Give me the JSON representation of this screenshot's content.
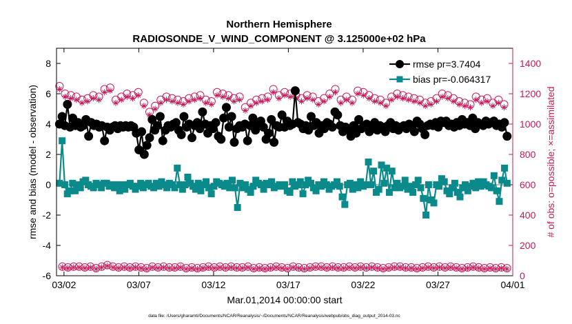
{
  "chart_data": {
    "type": "line",
    "title": "Northern Hemisphere",
    "subtitle": "RADIOSONDE_V_WIND_COMPONENT @ 3.125000e+02 hPa",
    "xlabel": "Mar.01,2014 00:00:00 start",
    "ylabel": "rmse and bias (model - observation)",
    "ylabel_right": "# of obs: o=possible; ×=assimilated",
    "ylim": [
      -6,
      9
    ],
    "ylim_right": [
      0,
      1500
    ],
    "xlim_days": [
      0.5,
      31.0
    ],
    "x_ticks": [
      "03/02",
      "03/07",
      "03/12",
      "03/17",
      "03/22",
      "03/27",
      "04/01"
    ],
    "y_ticks": [
      "-6",
      "-4",
      "-2",
      "0",
      "2",
      "4",
      "6",
      "8"
    ],
    "y_ticks_right": [
      "0",
      "200",
      "400",
      "600",
      "800",
      "1000",
      "1200",
      "1400"
    ],
    "footnote": "data file: /Users/gharamti/Documents/NCAR/Reanalysis/~/Documents/NCAR/Reanalysis/webpub/obs_diag_output_2014-03.nc",
    "series": [
      {
        "name": "rmse pr=3.7404",
        "color": "#000000",
        "marker": "circle",
        "values": [
          4.0,
          4.5,
          3.9,
          5.3,
          3.8,
          4.4,
          3.9,
          4.1,
          3.8,
          3.9,
          4.3,
          3.2,
          4.1,
          3.9,
          4.0,
          3.8,
          3.9,
          2.9,
          3.8,
          3.6,
          3.8,
          3.9,
          3.7,
          3.9,
          3.8,
          3.9,
          3.8,
          3.9,
          3.8,
          3.4,
          2.3,
          3.5,
          2.0,
          2.6,
          3.1,
          4.3,
          3.6,
          3.9,
          4.5,
          2.9,
          3.6,
          3.9,
          3.8,
          4.0,
          4.1,
          3.6,
          3.3,
          4.5,
          3.8,
          4.0,
          3.1,
          3.9,
          4.1,
          3.7,
          4.8,
          4.0,
          3.4,
          3.9,
          3.7,
          4.1,
          3.2,
          3.0,
          4.4,
          5.1,
          3.8,
          4.5,
          2.8,
          3.7,
          3.9,
          3.8,
          4.0,
          2.9,
          3.9,
          4.4,
          3.6,
          4.0,
          4.2,
          3.8,
          3.0,
          3.4,
          4.3,
          2.8,
          3.9,
          3.8,
          4.6,
          3.8,
          4.2,
          3.9,
          4.0,
          6.2,
          4.1,
          4.0,
          3.7,
          3.9,
          3.6,
          4.5,
          3.9,
          4.1,
          3.4,
          3.9,
          3.7,
          4.1,
          4.0,
          3.8,
          4.8,
          4.6,
          3.9,
          3.5,
          3.8,
          3.6,
          3.2,
          3.9,
          3.4,
          4.3,
          3.7,
          3.9,
          4.0,
          3.5,
          3.9,
          4.1,
          3.6,
          3.9,
          3.8,
          3.5,
          3.9,
          4.1,
          3.7,
          3.9,
          3.6,
          3.8,
          3.9,
          3.7,
          4.0,
          3.8,
          3.5,
          4.2,
          4.0,
          3.7,
          3.3,
          3.9,
          4.0,
          3.9,
          4.1,
          3.8,
          4.2,
          4.1,
          4.2,
          3.9,
          4.0,
          3.8,
          4.1,
          3.9,
          4.3,
          4.0,
          4.1,
          3.9,
          4.4,
          3.7,
          4.1,
          4.0,
          3.9,
          4.2,
          4.0,
          4.1,
          4.2,
          3.9,
          4.0,
          3.8,
          4.1,
          3.2
        ]
      },
      {
        "name": "bias pr=-0.064317",
        "color": "#0a8a8a",
        "marker": "square",
        "values": [
          0.1,
          2.9,
          0.0,
          -0.6,
          -0.4,
          0.1,
          -0.4,
          0.0,
          -0.2,
          0.2,
          0.3,
          0.0,
          -0.1,
          -0.2,
          0.1,
          0.0,
          -0.2,
          0.1,
          0.1,
          -0.1,
          0.0,
          -0.2,
          0.0,
          -0.4,
          0.0,
          -0.3,
          0.0,
          0.1,
          -0.1,
          -0.3,
          -0.1,
          0.1,
          -0.2,
          0.0,
          0.1,
          -0.1,
          -0.2,
          0.1,
          -0.1,
          0.2,
          0.0,
          -0.2,
          0.1,
          0.0,
          -0.2,
          1.1,
          0.0,
          -0.3,
          0.0,
          0.5,
          0.1,
          -0.1,
          -0.3,
          0.1,
          -0.4,
          0.0,
          0.2,
          -0.2,
          -0.6,
          -0.1,
          0.2,
          0.1,
          0.0,
          -0.1,
          0.1,
          -0.2,
          0.3,
          -0.2,
          -1.5,
          0.1,
          -0.2,
          0.0,
          -0.3,
          -0.5,
          -0.1,
          0.3,
          0.1,
          0.0,
          -0.3,
          0.1,
          0.0,
          0.2,
          -0.2,
          -0.1,
          0.0,
          -0.1,
          0.0,
          -0.4,
          -0.5,
          0.2,
          -0.1,
          0.0,
          0.2,
          -0.6,
          0.0,
          0.3,
          0.1,
          -0.2,
          -0.4,
          0.0,
          -0.1,
          0.2,
          0.0,
          -0.3,
          -0.1,
          0.0,
          0.2,
          -0.1,
          -0.8,
          -1.3,
          0.0,
          0.1,
          -0.3,
          0.0,
          -0.2,
          0.2,
          -0.1,
          0.0,
          1.5,
          0.0,
          0.9,
          -0.5,
          -0.3,
          1.3,
          0.1,
          1.1,
          -0.5,
          0.9,
          -0.2,
          0.1,
          -0.2,
          -0.1,
          0.3,
          -0.3,
          -0.1,
          -0.5,
          0.0,
          0.3,
          -0.2,
          -0.9,
          -2.0,
          0.0,
          -1.0,
          -1.2,
          0.0,
          -0.1,
          0.4,
          0.2,
          -0.4,
          -0.6,
          -0.2,
          0.1,
          -0.5,
          -0.8,
          -0.2,
          0.0,
          -0.4,
          -0.1,
          0.1,
          -0.2,
          0.2,
          -0.1,
          0.2,
          0.0,
          -0.1,
          -0.2,
          0.6,
          -0.4,
          -1.1,
          0.3,
          1.1,
          0.1
        ]
      },
      {
        "name": "possible",
        "axis": "right",
        "color": "#c8185a",
        "marker": "open-circle",
        "values_by_hour": "00Z/12Z alternating",
        "values": [
          1250,
          60,
          1200,
          55,
          1190,
          60,
          1180,
          60,
          1160,
          55,
          1170,
          60,
          1190,
          50,
          1180,
          60,
          1230,
          70,
          1240,
          60,
          1160,
          55,
          1180,
          60,
          1200,
          55,
          1190,
          60,
          1210,
          55,
          1140,
          50,
          1080,
          60,
          1120,
          55,
          1160,
          60,
          1180,
          55,
          1170,
          55,
          1160,
          60,
          1150,
          50,
          1170,
          55,
          1180,
          50,
          1190,
          55,
          1160,
          60,
          1150,
          55,
          1210,
          60,
          1200,
          55,
          1190,
          60,
          1170,
          55,
          1180,
          55,
          1110,
          60,
          1140,
          50,
          1160,
          55,
          1170,
          50,
          1180,
          55,
          1230,
          60,
          1190,
          55,
          1210,
          50,
          1200,
          60,
          1190,
          55,
          1170,
          50,
          1190,
          55,
          1180,
          60,
          1150,
          60,
          1170,
          55,
          1200,
          60,
          1230,
          55,
          1160,
          55,
          1180,
          60,
          1160,
          55,
          1220,
          60,
          1210,
          55,
          1190,
          60,
          1170,
          55,
          1160,
          50,
          1140,
          55,
          1180,
          60,
          1200,
          60,
          1190,
          55,
          1180,
          55,
          1170,
          50,
          1160,
          55,
          1140,
          60,
          1150,
          55,
          1170,
          60,
          1200,
          55,
          1190,
          60,
          1170,
          55,
          1150,
          50,
          1140,
          55,
          1130,
          60,
          1180,
          55,
          1160,
          50,
          1170,
          55,
          1140,
          50,
          1160,
          55,
          1130,
          50
        ]
      },
      {
        "name": "assimilated",
        "axis": "right",
        "color": "#c8185a",
        "marker": "asterisk",
        "values": [
          1230,
          55,
          1180,
          50,
          1170,
          55,
          1160,
          55,
          1140,
          50,
          1150,
          55,
          1170,
          45,
          1160,
          55,
          1210,
          65,
          1220,
          55,
          1140,
          50,
          1160,
          55,
          1180,
          50,
          1170,
          55,
          1190,
          50,
          1120,
          45,
          1060,
          55,
          1100,
          50,
          1140,
          55,
          1160,
          50,
          1150,
          50,
          1140,
          55,
          1130,
          45,
          1150,
          50,
          1160,
          45,
          1170,
          50,
          1140,
          55,
          1130,
          50,
          1190,
          55,
          1180,
          50,
          1170,
          55,
          1150,
          50,
          1160,
          50,
          1090,
          55,
          1120,
          45,
          1140,
          50,
          1150,
          45,
          1160,
          50,
          1210,
          55,
          1170,
          50,
          1190,
          45,
          1180,
          55,
          1170,
          50,
          1150,
          45,
          1170,
          50,
          1160,
          55,
          1130,
          55,
          1150,
          50,
          1180,
          55,
          1210,
          50,
          1140,
          50,
          1160,
          55,
          1140,
          50,
          1200,
          55,
          1190,
          50,
          1170,
          55,
          1150,
          50,
          1140,
          45,
          1120,
          50,
          1160,
          55,
          1180,
          55,
          1170,
          50,
          1160,
          50,
          1150,
          45,
          1140,
          50,
          1120,
          55,
          1130,
          50,
          1150,
          55,
          1180,
          50,
          1170,
          55,
          1150,
          50,
          1130,
          45,
          1120,
          50,
          1110,
          55,
          1160,
          50,
          1140,
          45,
          1150,
          50,
          1120,
          45,
          1140,
          50,
          1110,
          45
        ]
      }
    ]
  }
}
